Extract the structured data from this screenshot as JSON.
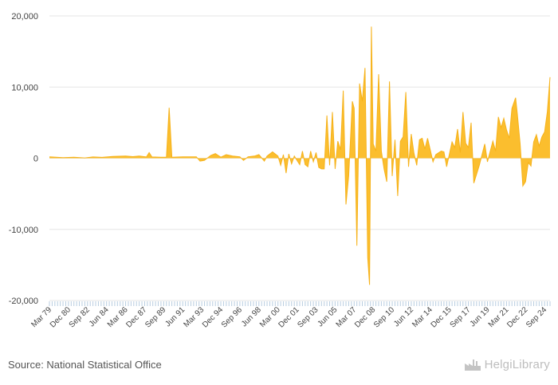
{
  "chart_data": {
    "type": "area",
    "title": "",
    "xlabel": "",
    "ylabel": "",
    "ylim": [
      -20000,
      20000
    ],
    "yticks": [
      {
        "value": 20000,
        "label": "20,000"
      },
      {
        "value": 10000,
        "label": "10,000"
      },
      {
        "value": 0,
        "label": "0"
      },
      {
        "value": -10000,
        "label": "-10,000"
      },
      {
        "value": -20000,
        "label": "-20,000"
      }
    ],
    "x_start": "1979-03",
    "x_end": "2024-09",
    "xticks": [
      {
        "date": "1979-03",
        "label": "Mar 79"
      },
      {
        "date": "1980-12",
        "label": "Dec 80"
      },
      {
        "date": "1982-09",
        "label": "Sep 82"
      },
      {
        "date": "1984-06",
        "label": "Jun 84"
      },
      {
        "date": "1986-03",
        "label": "Mar 86"
      },
      {
        "date": "1987-12",
        "label": "Dec 87"
      },
      {
        "date": "1989-09",
        "label": "Sep 89"
      },
      {
        "date": "1991-06",
        "label": "Jun 91"
      },
      {
        "date": "1993-03",
        "label": "Mar 93"
      },
      {
        "date": "1994-12",
        "label": "Dec 94"
      },
      {
        "date": "1996-09",
        "label": "Sep 96"
      },
      {
        "date": "1998-06",
        "label": "Jun 98"
      },
      {
        "date": "2000-03",
        "label": "Mar 00"
      },
      {
        "date": "2001-12",
        "label": "Dec 01"
      },
      {
        "date": "2003-09",
        "label": "Sep 03"
      },
      {
        "date": "2005-06",
        "label": "Jun 05"
      },
      {
        "date": "2007-03",
        "label": "Mar 07"
      },
      {
        "date": "2008-12",
        "label": "Dec 08"
      },
      {
        "date": "2010-09",
        "label": "Sep 10"
      },
      {
        "date": "2012-06",
        "label": "Jun 12"
      },
      {
        "date": "2014-03",
        "label": "Mar 14"
      },
      {
        "date": "2015-12",
        "label": "Dec 15"
      },
      {
        "date": "2017-09",
        "label": "Sep 17"
      },
      {
        "date": "2019-06",
        "label": "Jun 19"
      },
      {
        "date": "2021-03",
        "label": "Mar 21"
      },
      {
        "date": "2022-12",
        "label": "Dec 22"
      },
      {
        "date": "2024-09",
        "label": "Sep 24"
      }
    ],
    "grid": true,
    "legend": "none",
    "colors": {
      "fill": "#fbbe2e",
      "stroke": "#f6b21a",
      "grid": "#e6e6e6",
      "tick": "#b8cde0"
    },
    "series": [
      {
        "points": [
          [
            "1979-03",
            200
          ],
          [
            "1980-06",
            80
          ],
          [
            "1981-06",
            150
          ],
          [
            "1982-06",
            50
          ],
          [
            "1983-03",
            180
          ],
          [
            "1984-01",
            120
          ],
          [
            "1985-01",
            250
          ],
          [
            "1986-03",
            300
          ],
          [
            "1986-11",
            220
          ],
          [
            "1987-06",
            300
          ],
          [
            "1988-02",
            180
          ],
          [
            "1988-05",
            800
          ],
          [
            "1988-08",
            180
          ],
          [
            "1989-06",
            150
          ],
          [
            "1989-12",
            150
          ],
          [
            "1990-03",
            7100
          ],
          [
            "1990-06",
            150
          ],
          [
            "1991-06",
            200
          ],
          [
            "1992-09",
            200
          ],
          [
            "1993-01",
            -400
          ],
          [
            "1993-06",
            -300
          ],
          [
            "1994-01",
            400
          ],
          [
            "1994-06",
            650
          ],
          [
            "1994-12",
            150
          ],
          [
            "1995-06",
            500
          ],
          [
            "1996-01",
            300
          ],
          [
            "1996-09",
            200
          ],
          [
            "1997-01",
            -300
          ],
          [
            "1997-06",
            200
          ],
          [
            "1998-01",
            300
          ],
          [
            "1998-06",
            500
          ],
          [
            "1998-12",
            -400
          ],
          [
            "1999-03",
            300
          ],
          [
            "1999-09",
            900
          ],
          [
            "2000-03",
            300
          ],
          [
            "2000-06",
            -1000
          ],
          [
            "2000-09",
            500
          ],
          [
            "2000-12",
            -2100
          ],
          [
            "2001-03",
            600
          ],
          [
            "2001-06",
            -800
          ],
          [
            "2001-09",
            300
          ],
          [
            "2002-03",
            -900
          ],
          [
            "2002-06",
            1000
          ],
          [
            "2002-09",
            -900
          ],
          [
            "2002-12",
            -1200
          ],
          [
            "2003-03",
            1000
          ],
          [
            "2003-06",
            -500
          ],
          [
            "2003-09",
            800
          ],
          [
            "2003-12",
            -1300
          ],
          [
            "2004-03",
            -1500
          ],
          [
            "2004-06",
            -1500
          ],
          [
            "2004-09",
            6000
          ],
          [
            "2004-12",
            -1000
          ],
          [
            "2005-03",
            6500
          ],
          [
            "2005-06",
            -1500
          ],
          [
            "2005-09",
            2400
          ],
          [
            "2005-12",
            1200
          ],
          [
            "2006-03",
            9500
          ],
          [
            "2006-06",
            -6500
          ],
          [
            "2006-09",
            -2500
          ],
          [
            "2007-01",
            8000
          ],
          [
            "2007-03",
            7000
          ],
          [
            "2007-06",
            -12300
          ],
          [
            "2007-09",
            10500
          ],
          [
            "2007-12",
            8000
          ],
          [
            "2008-03",
            12700
          ],
          [
            "2008-06",
            -14000
          ],
          [
            "2008-08",
            -17800
          ],
          [
            "2008-10",
            18500
          ],
          [
            "2008-12",
            2000
          ],
          [
            "2009-03",
            1000
          ],
          [
            "2009-06",
            11800
          ],
          [
            "2009-09",
            1000
          ],
          [
            "2009-12",
            -1500
          ],
          [
            "2010-03",
            -3300
          ],
          [
            "2010-06",
            10800
          ],
          [
            "2010-09",
            -2500
          ],
          [
            "2010-12",
            2600
          ],
          [
            "2011-03",
            -5300
          ],
          [
            "2011-06",
            2400
          ],
          [
            "2011-09",
            3000
          ],
          [
            "2011-12",
            9300
          ],
          [
            "2012-03",
            -1200
          ],
          [
            "2012-06",
            3400
          ],
          [
            "2012-09",
            700
          ],
          [
            "2012-12",
            -1000
          ],
          [
            "2013-03",
            2600
          ],
          [
            "2013-06",
            2800
          ],
          [
            "2013-09",
            1300
          ],
          [
            "2013-12",
            2800
          ],
          [
            "2014-06",
            -500
          ],
          [
            "2014-09",
            500
          ],
          [
            "2015-03",
            1000
          ],
          [
            "2015-06",
            900
          ],
          [
            "2015-09",
            -1200
          ],
          [
            "2016-03",
            2300
          ],
          [
            "2016-06",
            1500
          ],
          [
            "2016-09",
            4100
          ],
          [
            "2016-12",
            800
          ],
          [
            "2017-03",
            6500
          ],
          [
            "2017-06",
            2100
          ],
          [
            "2017-09",
            1500
          ],
          [
            "2017-12",
            5000
          ],
          [
            "2018-03",
            -3500
          ],
          [
            "2018-09",
            -1000
          ],
          [
            "2019-03",
            2000
          ],
          [
            "2019-06",
            -500
          ],
          [
            "2019-12",
            2400
          ],
          [
            "2020-03",
            1000
          ],
          [
            "2020-06",
            5800
          ],
          [
            "2020-09",
            4300
          ],
          [
            "2020-12",
            5600
          ],
          [
            "2021-03",
            4000
          ],
          [
            "2021-06",
            2800
          ],
          [
            "2021-09",
            7000
          ],
          [
            "2022-01",
            8500
          ],
          [
            "2022-03",
            6200
          ],
          [
            "2022-06",
            2000
          ],
          [
            "2022-09",
            -3900
          ],
          [
            "2022-12",
            -3300
          ],
          [
            "2023-03",
            -600
          ],
          [
            "2023-06",
            -1100
          ],
          [
            "2023-09",
            2300
          ],
          [
            "2023-12",
            3300
          ],
          [
            "2024-03",
            1700
          ],
          [
            "2024-06",
            3000
          ],
          [
            "2024-09",
            3700
          ],
          [
            "2024-12",
            6500
          ],
          [
            "2025-03",
            11400
          ]
        ]
      }
    ]
  },
  "footer": {
    "source": "Source: National Statistical Office",
    "logo_text": "HelgiLibrary",
    "logo_icon": "factory-icon"
  }
}
